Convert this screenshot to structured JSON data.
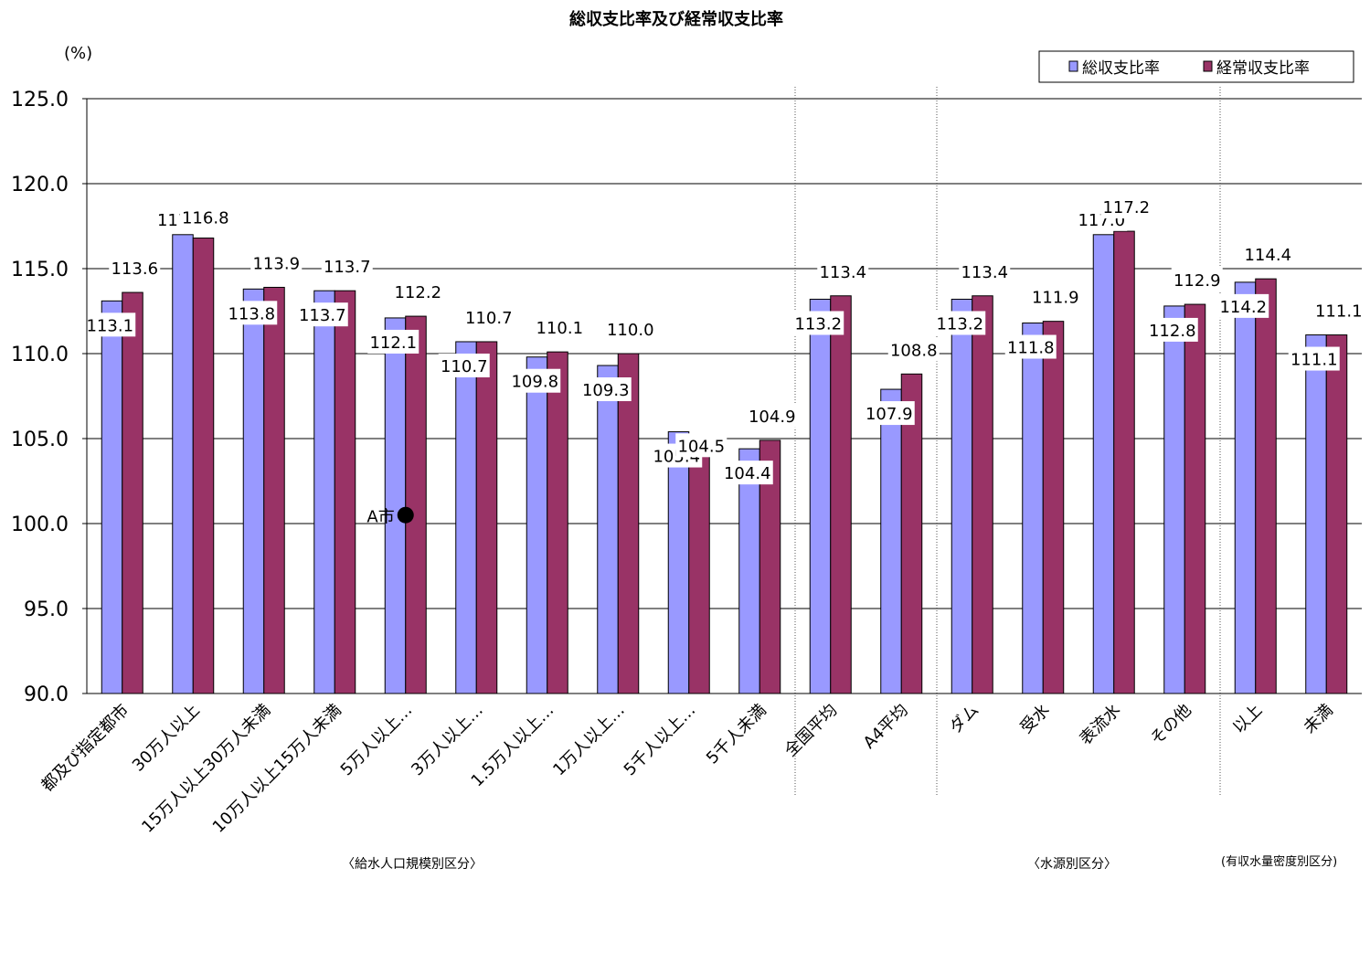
{
  "chart_data": {
    "type": "bar",
    "title": "総収支比率及び経常収支比率",
    "ylabel": "(%)",
    "ylim": [
      90,
      125
    ],
    "yticks": [
      "125.0",
      "120.0",
      "115.0",
      "110.0",
      "105.0",
      "100.0",
      "95.0",
      "90.0"
    ],
    "categories": [
      "都及び指定都市",
      "30万人以上",
      "15万人以上30万人未満",
      "10万人以上15万人未満",
      "5万人以上…",
      "3万人以上…",
      "1.5万人以上…",
      "1万人以上…",
      "5千人以上…",
      "5千人未満",
      "全国平均",
      "A4平均",
      "ダム",
      "受水",
      "表流水",
      "その他",
      "以上",
      "未満"
    ],
    "series": [
      {
        "name": "総収支比率",
        "color": "#9999ff",
        "values": [
          113.1,
          117.0,
          113.8,
          113.7,
          112.1,
          110.7,
          109.8,
          109.3,
          105.4,
          104.4,
          113.2,
          107.9,
          113.2,
          111.8,
          117.0,
          112.8,
          114.2,
          111.1
        ],
        "labels": [
          "113.1",
          "117.0",
          "113.8",
          "113.7",
          "112.1",
          "110.7",
          "109.8",
          "109.3",
          "105.4",
          "104.4",
          "113.2",
          "107.9",
          "113.2",
          "111.8",
          "117.0",
          "112.8",
          "114.2",
          "111.1"
        ]
      },
      {
        "name": "経常収支比率",
        "color": "#993366",
        "values": [
          113.6,
          116.8,
          113.9,
          113.7,
          112.2,
          110.7,
          110.1,
          110.0,
          104.5,
          104.9,
          113.4,
          108.8,
          113.4,
          111.9,
          117.2,
          112.9,
          114.4,
          111.1
        ],
        "labels": [
          "113.6",
          "116.8",
          "113.9",
          "113.7",
          "112.2",
          "110.7",
          "110.1",
          "110.0",
          "104.5",
          "104.9",
          "113.4",
          "108.8",
          "113.4",
          "111.9",
          "117.2",
          "112.9",
          "114.4",
          "111.1"
        ]
      }
    ],
    "marker": {
      "label": "A市",
      "value": 100.5
    },
    "legend": "top-right",
    "grid": true,
    "group_labels": [
      "〈給水人口規模別区分〉",
      "〈水源別区分〉",
      "(有収水量密度別区分)"
    ]
  }
}
